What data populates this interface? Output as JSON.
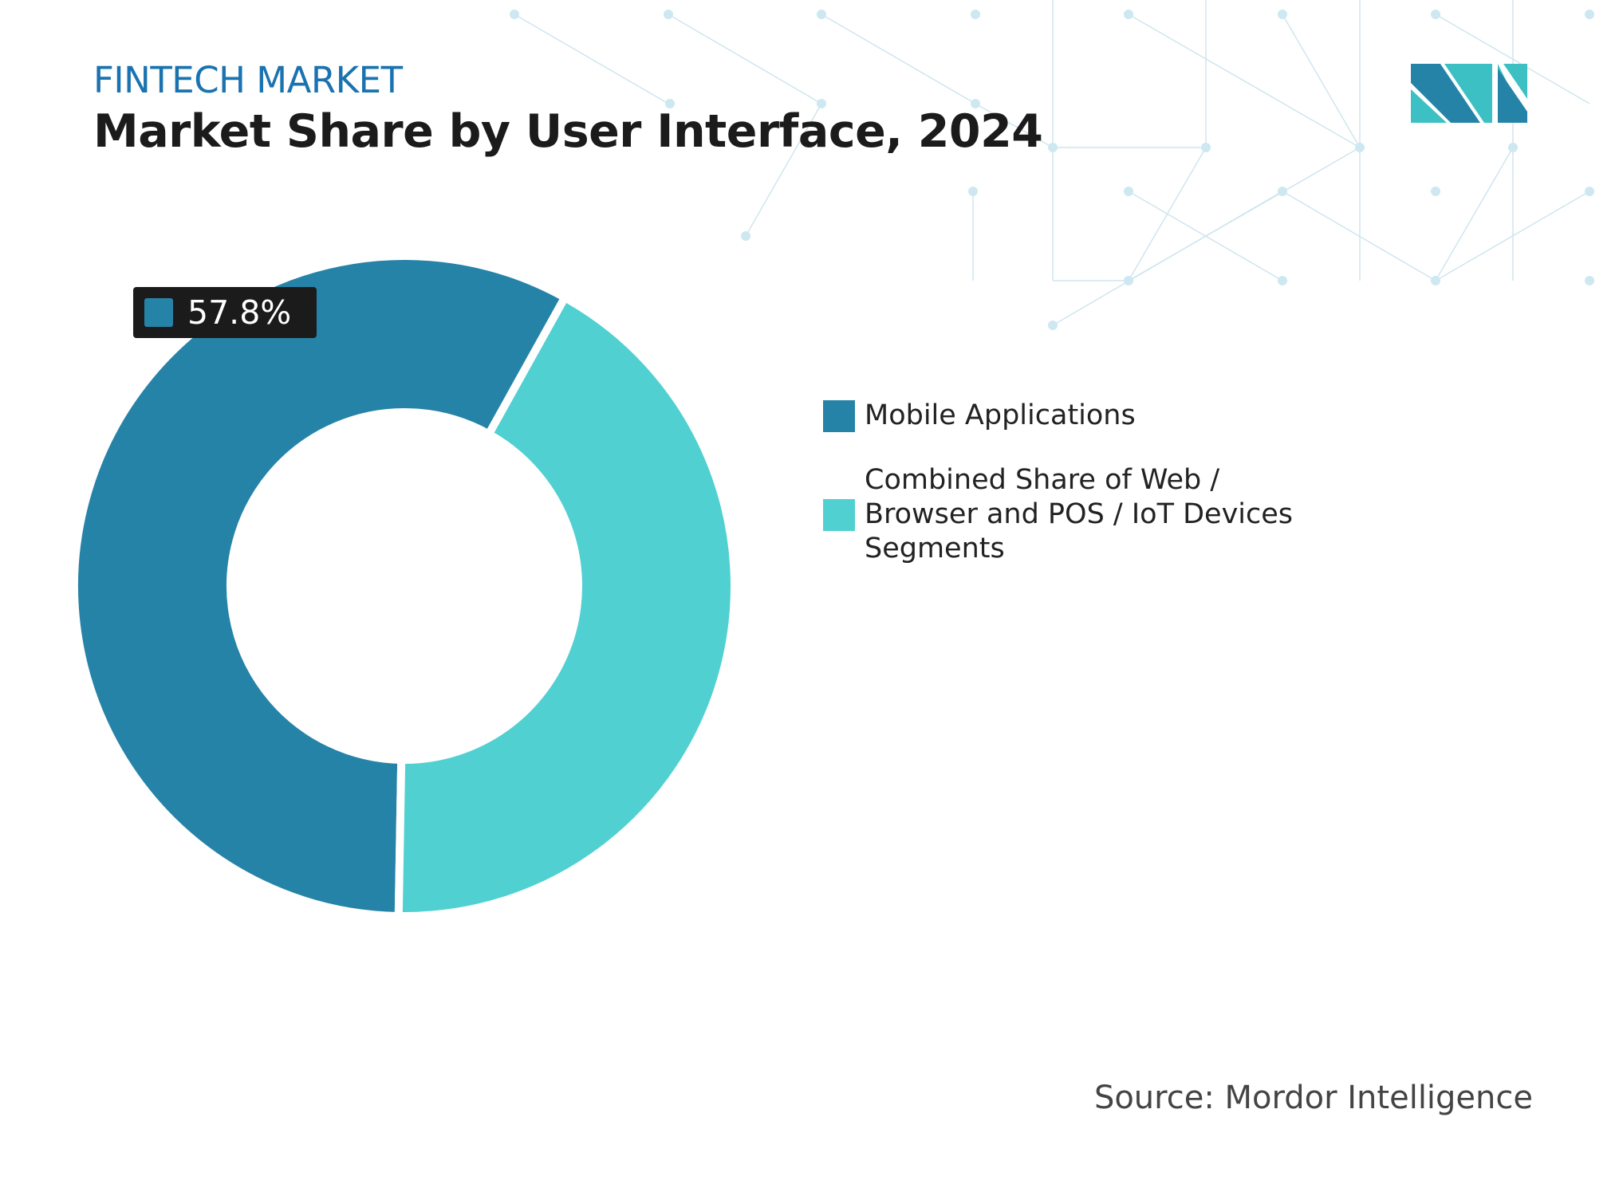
{
  "header": {
    "kicker": "FINTECH MARKET",
    "title": "Market Share by User Interface, 2024"
  },
  "chart_data": {
    "type": "donut",
    "series": [
      {
        "name": "Mobile Applications",
        "value": 57.8,
        "color": "#2683a8"
      },
      {
        "name": "Combined Share of Web / Browser and POS / IoT Devices Segments",
        "value": 42.2,
        "color": "#51d0d2"
      }
    ],
    "data_labels": [
      {
        "series": "Mobile Applications",
        "text": "57.8%"
      }
    ],
    "legend_position": "right"
  },
  "footer": {
    "source": "Source: Mordor Intelligence"
  },
  "colors": {
    "kicker": "#1a73b0",
    "logo_dark": "#2683a8",
    "logo_light": "#3cc0c4"
  }
}
